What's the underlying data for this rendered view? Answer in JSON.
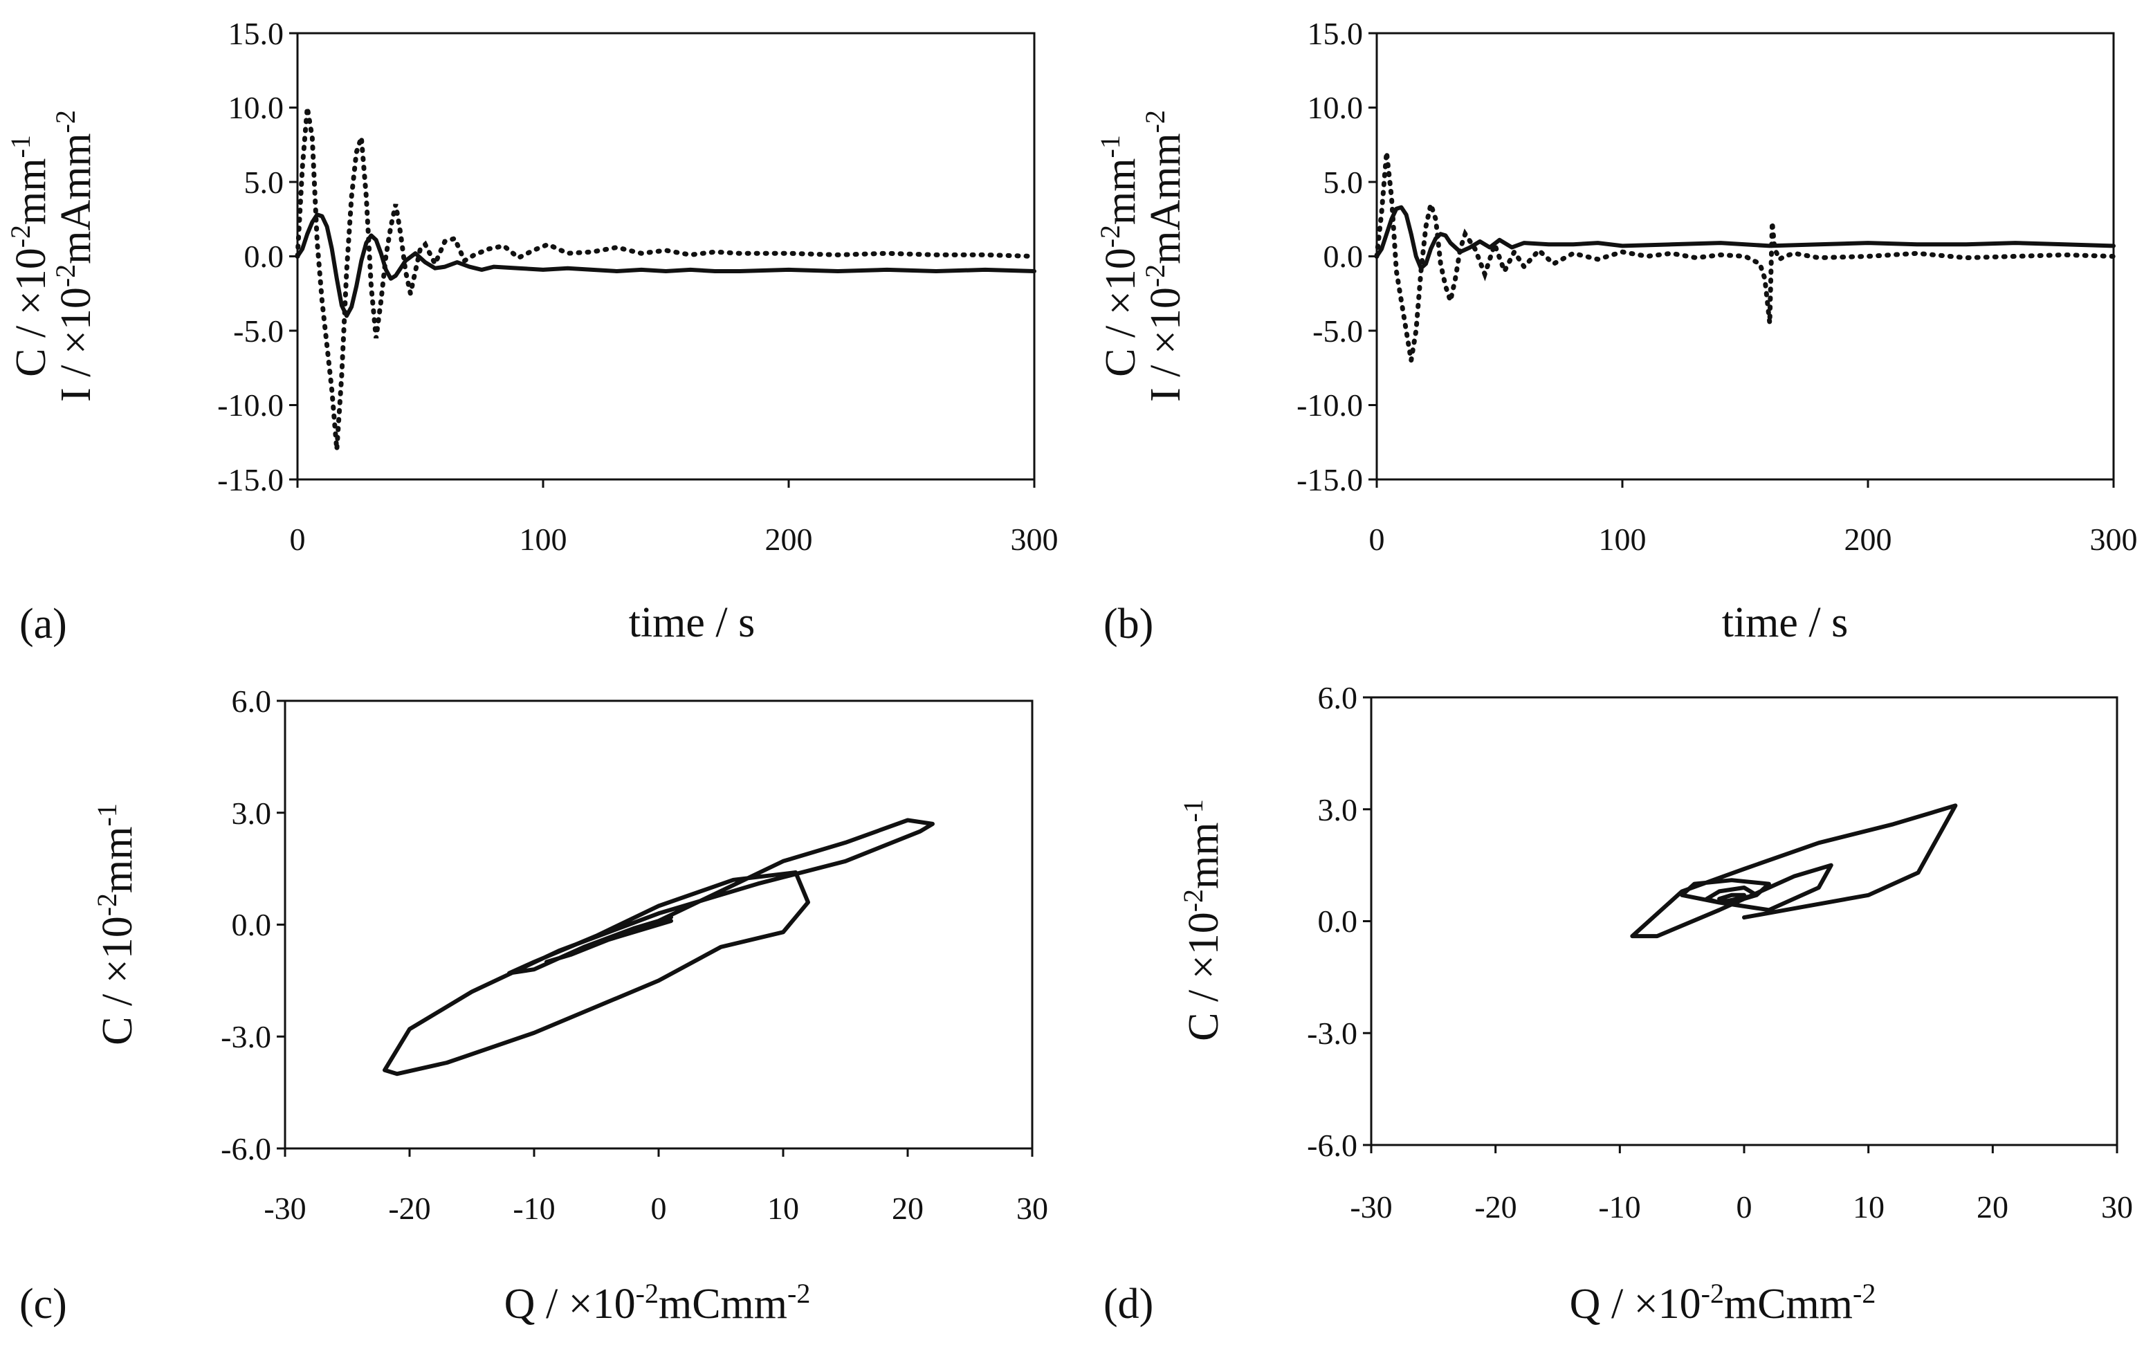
{
  "chart_data": [
    {
      "id": "a",
      "panel_label": "(a)",
      "type": "line",
      "xlabel": "time / s",
      "ylabel_line1": "C / ×10",
      "ylabel_line1_sup": "-2",
      "ylabel_line1_tail": "mm",
      "ylabel_line1_tail_sup": "-1",
      "ylabel_line2": "I / ×10",
      "ylabel_line2_sup": "-2",
      "ylabel_line2_tail": "mAmm",
      "ylabel_line2_tail_sup": "-2",
      "xlim": [
        0,
        300
      ],
      "ylim": [
        -15,
        15
      ],
      "xticks": [
        "0",
        "100",
        "200",
        "300"
      ],
      "yticks": [
        "-15.0",
        "-10.0",
        "-5.0",
        "0.0",
        "5.0",
        "10.0",
        "15.0"
      ],
      "series": [
        {
          "name": "C",
          "style": "solid",
          "x": [
            0,
            2,
            4,
            6,
            8,
            10,
            12,
            14,
            16,
            18,
            20,
            22,
            24,
            26,
            28,
            30,
            32,
            34,
            36,
            38,
            40,
            44,
            48,
            52,
            56,
            60,
            65,
            70,
            75,
            80,
            90,
            100,
            110,
            120,
            130,
            140,
            150,
            160,
            170,
            180,
            200,
            220,
            240,
            260,
            280,
            300
          ],
          "y": [
            0,
            0.5,
            1.5,
            2.3,
            2.8,
            2.7,
            2.0,
            0.5,
            -1.5,
            -3.3,
            -4.0,
            -3.4,
            -2.0,
            -0.3,
            0.9,
            1.4,
            1.1,
            0.2,
            -0.9,
            -1.5,
            -1.3,
            -0.3,
            0.2,
            -0.4,
            -0.8,
            -0.7,
            -0.4,
            -0.7,
            -0.9,
            -0.7,
            -0.8,
            -0.9,
            -0.8,
            -0.9,
            -1.0,
            -0.9,
            -1.0,
            -0.9,
            -1.0,
            -1.0,
            -0.9,
            -1.0,
            -0.9,
            -1.0,
            -0.9,
            -1.0
          ]
        },
        {
          "name": "I",
          "style": "dotted",
          "x": [
            0,
            2,
            4,
            6,
            8,
            10,
            12,
            14,
            16,
            18,
            20,
            22,
            24,
            26,
            28,
            30,
            32,
            34,
            36,
            38,
            40,
            42,
            44,
            46,
            48,
            50,
            52,
            56,
            60,
            64,
            68,
            72,
            78,
            84,
            90,
            96,
            102,
            110,
            120,
            130,
            140,
            150,
            160,
            170,
            180,
            200,
            220,
            240,
            260,
            280,
            300
          ],
          "y": [
            0,
            6,
            10,
            8,
            1,
            -3,
            -6,
            -9,
            -13,
            -8,
            -1,
            4,
            7,
            8,
            4,
            -2,
            -5.5,
            -3,
            0,
            2,
            3.5,
            1.5,
            -1,
            -2.5,
            -1,
            0.5,
            0.8,
            -0.5,
            1.0,
            1.2,
            -0.3,
            0.1,
            0.5,
            0.7,
            -0.1,
            0.4,
            0.8,
            0.2,
            0.3,
            0.6,
            0.2,
            0.4,
            0.1,
            0.3,
            0.2,
            0.2,
            0.1,
            0.2,
            0.1,
            0.1,
            0.0
          ]
        }
      ]
    },
    {
      "id": "b",
      "panel_label": "(b)",
      "type": "line",
      "xlabel": "time / s",
      "ylabel_line1": "C / ×10",
      "ylabel_line1_sup": "-2",
      "ylabel_line1_tail": "mm",
      "ylabel_line1_tail_sup": "-1",
      "ylabel_line2": "I / ×10",
      "ylabel_line2_sup": "-2",
      "ylabel_line2_tail": "mAmm",
      "ylabel_line2_tail_sup": "-2",
      "xlim": [
        0,
        300
      ],
      "ylim": [
        -15,
        15
      ],
      "xticks": [
        "0",
        "100",
        "200",
        "300"
      ],
      "yticks": [
        "-15.0",
        "-10.0",
        "-5.0",
        "0.0",
        "5.0",
        "10.0",
        "15.0"
      ],
      "series": [
        {
          "name": "C",
          "style": "solid",
          "x": [
            0,
            2,
            4,
            6,
            8,
            10,
            12,
            14,
            16,
            18,
            20,
            22,
            24,
            26,
            28,
            30,
            34,
            38,
            42,
            46,
            50,
            55,
            60,
            70,
            80,
            90,
            100,
            120,
            140,
            160,
            180,
            200,
            220,
            240,
            260,
            280,
            300
          ],
          "y": [
            0,
            0.5,
            1.5,
            2.5,
            3.2,
            3.3,
            2.8,
            1.5,
            0.0,
            -0.8,
            -0.5,
            0.5,
            1.2,
            1.5,
            1.4,
            0.9,
            0.3,
            0.6,
            1.0,
            0.6,
            1.1,
            0.6,
            0.9,
            0.8,
            0.8,
            0.9,
            0.7,
            0.8,
            0.9,
            0.7,
            0.8,
            0.9,
            0.8,
            0.8,
            0.9,
            0.8,
            0.7
          ]
        },
        {
          "name": "I",
          "style": "dotted",
          "x": [
            0,
            2,
            4,
            6,
            8,
            10,
            12,
            14,
            16,
            18,
            20,
            22,
            24,
            26,
            28,
            30,
            32,
            34,
            36,
            40,
            44,
            48,
            52,
            56,
            60,
            66,
            72,
            80,
            90,
            100,
            110,
            120,
            130,
            140,
            150,
            156,
            158,
            160,
            161,
            162,
            164,
            166,
            170,
            180,
            200,
            220,
            240,
            260,
            280,
            300
          ],
          "y": [
            0,
            3,
            7,
            4,
            -1,
            -3,
            -5,
            -7,
            -5,
            -1,
            2,
            3.5,
            2.5,
            -0.5,
            -2,
            -3,
            -1.5,
            0.5,
            1.5,
            0.5,
            -1.2,
            0.8,
            -1.0,
            0.3,
            -0.7,
            0.4,
            -0.5,
            0.2,
            -0.2,
            0.3,
            0.0,
            0.2,
            -0.1,
            0.1,
            0.0,
            -0.5,
            -1.5,
            -4.5,
            2.3,
            0.5,
            -0.2,
            0.0,
            0.2,
            -0.1,
            0.0,
            0.2,
            -0.1,
            0.0,
            0.1,
            0.0
          ]
        }
      ]
    },
    {
      "id": "c",
      "panel_label": "(c)",
      "type": "line",
      "xlabel": "Q / ×10",
      "xlabel_sup": "-2",
      "xlabel_tail": "mCmm",
      "xlabel_tail_sup": "-2",
      "ylabel_line1": "C / ×10",
      "ylabel_line1_sup": "-2",
      "ylabel_line1_tail": "mm",
      "ylabel_line1_tail_sup": "-1",
      "xlim": [
        -30,
        30
      ],
      "ylim": [
        -6,
        6
      ],
      "xticks": [
        "-30",
        "-20",
        "-10",
        "0",
        "10",
        "20",
        "30"
      ],
      "yticks": [
        "-6.0",
        "-3.0",
        "0.0",
        "3.0",
        "6.0"
      ],
      "series": [
        {
          "name": "C vs Q",
          "style": "solid",
          "x": [
            0,
            5,
            10,
            15,
            20,
            22,
            21,
            15,
            8,
            0,
            -8,
            -15,
            -20,
            -22,
            -21,
            -17,
            -10,
            0,
            5,
            10,
            12,
            11,
            6,
            0,
            -5,
            -10,
            -12,
            -10,
            -6,
            -2,
            1,
            0,
            -4,
            -8,
            -9,
            -7,
            -4,
            0,
            1
          ],
          "y": [
            0.1,
            0.9,
            1.7,
            2.2,
            2.8,
            2.7,
            2.5,
            1.7,
            1.1,
            0.3,
            -0.7,
            -1.8,
            -2.8,
            -3.9,
            -4.0,
            -3.7,
            -2.9,
            -1.5,
            -0.6,
            -0.2,
            0.6,
            1.4,
            1.2,
            0.5,
            -0.3,
            -1.0,
            -1.3,
            -1.2,
            -0.6,
            -0.1,
            0.2,
            0.1,
            -0.4,
            -0.9,
            -1.0,
            -0.8,
            -0.4,
            0.0,
            0.1
          ]
        }
      ]
    },
    {
      "id": "d",
      "panel_label": "(d)",
      "type": "line",
      "xlabel": "Q / ×10",
      "xlabel_sup": "-2",
      "xlabel_tail": "mCmm",
      "xlabel_tail_sup": "-2",
      "ylabel_line1": "C / ×10",
      "ylabel_line1_sup": "-2",
      "ylabel_line1_tail": "mm",
      "ylabel_line1_tail_sup": "-1",
      "xlim": [
        -30,
        30
      ],
      "ylim": [
        -6,
        6
      ],
      "xticks": [
        "-30",
        "-20",
        "-10",
        "0",
        "10",
        "20",
        "30"
      ],
      "yticks": [
        "-6.0",
        "-3.0",
        "0.0",
        "3.0",
        "6.0"
      ],
      "series": [
        {
          "name": "C vs Q",
          "style": "solid",
          "x": [
            0,
            5,
            10,
            14,
            16,
            17,
            16,
            12,
            6,
            0,
            -5,
            -9,
            -7,
            -2,
            4,
            7,
            6,
            2,
            -2,
            -5,
            -4,
            -1,
            2,
            1,
            -2,
            -3,
            -2,
            0,
            1,
            -1,
            -2,
            -1,
            0
          ],
          "y": [
            0.1,
            0.4,
            0.7,
            1.3,
            2.5,
            3.1,
            3.0,
            2.6,
            2.1,
            1.4,
            0.8,
            -0.4,
            -0.4,
            0.3,
            1.2,
            1.5,
            0.9,
            0.3,
            0.5,
            0.7,
            1.0,
            1.1,
            1.0,
            0.7,
            0.5,
            0.6,
            0.8,
            0.9,
            0.7,
            0.5,
            0.6,
            0.7,
            0.7
          ]
        }
      ]
    }
  ]
}
